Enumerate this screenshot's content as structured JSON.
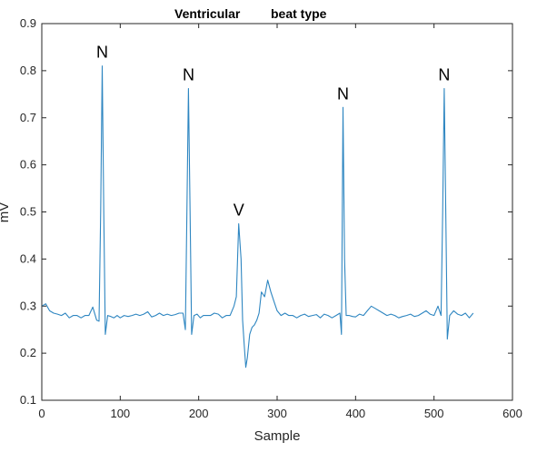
{
  "chart_data": {
    "type": "line",
    "title_parts": [
      "Ventricular",
      "beat type"
    ],
    "xlabel": "Sample",
    "ylabel": "mV",
    "xlim": [
      0,
      600
    ],
    "ylim": [
      0.1,
      0.9
    ],
    "x_ticks": [
      0,
      100,
      200,
      300,
      400,
      500,
      600
    ],
    "y_ticks": [
      0.1,
      0.2,
      0.3,
      0.4,
      0.5,
      0.6,
      0.7,
      0.8,
      0.9
    ],
    "grid": false,
    "line_color": "#2e86c1",
    "annotations": [
      {
        "text": "N",
        "x": 77,
        "y": 0.81
      },
      {
        "text": "N",
        "x": 187,
        "y": 0.762
      },
      {
        "text": "V",
        "x": 251,
        "y": 0.475
      },
      {
        "text": "N",
        "x": 384,
        "y": 0.722
      },
      {
        "text": "N",
        "x": 513,
        "y": 0.762
      }
    ],
    "series": [
      {
        "x": [
          0,
          5,
          10,
          15,
          20,
          25,
          30,
          35,
          40,
          45,
          50,
          55,
          60,
          65,
          70,
          73,
          75,
          77,
          79,
          81,
          84,
          88,
          92,
          96,
          100,
          105,
          110,
          115,
          120,
          125,
          130,
          135,
          140,
          145,
          150,
          155,
          160,
          165,
          170,
          175,
          180,
          183,
          185,
          187,
          189,
          191,
          194,
          198,
          202,
          206,
          210,
          215,
          220,
          225,
          230,
          235,
          240,
          245,
          248,
          251,
          254,
          256,
          258,
          260,
          262,
          265,
          268,
          271,
          274,
          277,
          280,
          284,
          288,
          292,
          296,
          300,
          305,
          310,
          315,
          320,
          325,
          330,
          335,
          340,
          345,
          350,
          355,
          360,
          365,
          370,
          375,
          380,
          382,
          384,
          386,
          388,
          392,
          396,
          400,
          405,
          410,
          415,
          420,
          425,
          430,
          435,
          440,
          445,
          450,
          455,
          460,
          465,
          470,
          475,
          480,
          485,
          490,
          495,
          500,
          505,
          509,
          511,
          513,
          515,
          517,
          520,
          525,
          530,
          535,
          540,
          545,
          550
        ],
        "y": [
          0.3,
          0.305,
          0.29,
          0.285,
          0.283,
          0.28,
          0.285,
          0.275,
          0.28,
          0.28,
          0.275,
          0.28,
          0.28,
          0.298,
          0.27,
          0.268,
          0.5,
          0.81,
          0.5,
          0.24,
          0.28,
          0.278,
          0.275,
          0.28,
          0.275,
          0.28,
          0.278,
          0.28,
          0.283,
          0.28,
          0.283,
          0.288,
          0.277,
          0.28,
          0.285,
          0.28,
          0.283,
          0.28,
          0.282,
          0.285,
          0.285,
          0.25,
          0.5,
          0.762,
          0.5,
          0.24,
          0.28,
          0.283,
          0.275,
          0.28,
          0.28,
          0.28,
          0.285,
          0.283,
          0.275,
          0.28,
          0.28,
          0.3,
          0.32,
          0.475,
          0.4,
          0.27,
          0.22,
          0.17,
          0.19,
          0.24,
          0.255,
          0.26,
          0.27,
          0.285,
          0.33,
          0.32,
          0.355,
          0.33,
          0.31,
          0.29,
          0.28,
          0.285,
          0.28,
          0.28,
          0.275,
          0.28,
          0.283,
          0.278,
          0.28,
          0.282,
          0.275,
          0.283,
          0.28,
          0.275,
          0.28,
          0.285,
          0.24,
          0.722,
          0.4,
          0.28,
          0.28,
          0.278,
          0.277,
          0.283,
          0.28,
          0.29,
          0.3,
          0.295,
          0.29,
          0.285,
          0.28,
          0.283,
          0.28,
          0.275,
          0.278,
          0.28,
          0.283,
          0.278,
          0.28,
          0.285,
          0.29,
          0.283,
          0.28,
          0.3,
          0.28,
          0.5,
          0.762,
          0.5,
          0.23,
          0.28,
          0.29,
          0.283,
          0.28,
          0.285,
          0.275,
          0.285
        ]
      }
    ]
  }
}
